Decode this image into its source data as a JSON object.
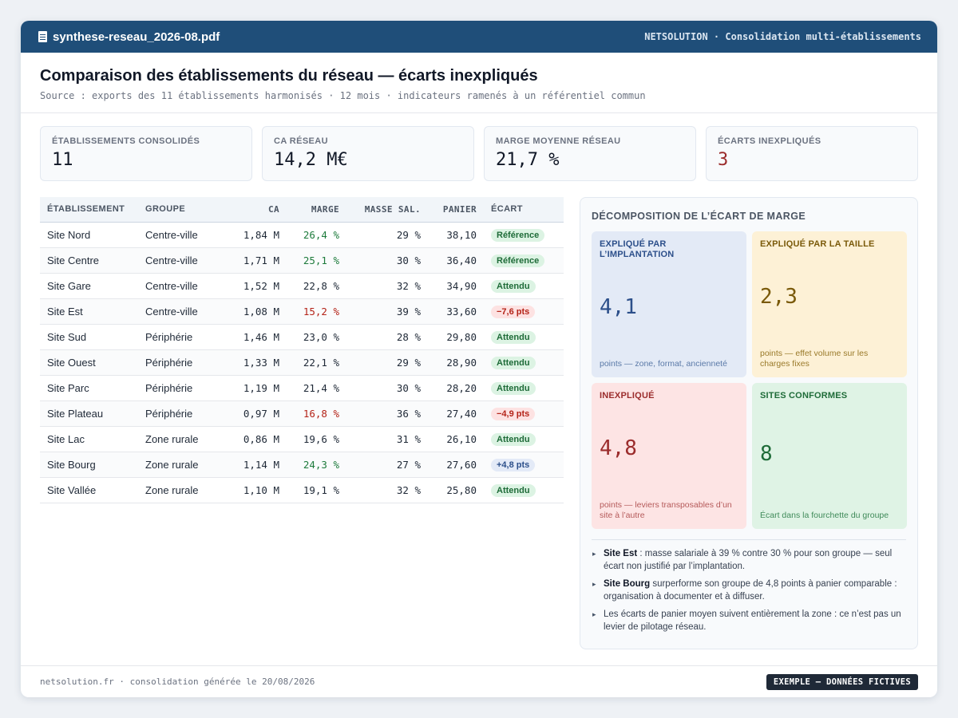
{
  "titlebar": {
    "filename": "synthese-reseau_2026-08.pdf",
    "brand": "NETSOLUTION · Consolidation multi-établissements"
  },
  "header": {
    "title": "Comparaison des établissements du réseau — écarts inexpliqués",
    "subtitle": "Source : exports des 11 établissements harmonisés · 12 mois · indicateurs ramenés à un référentiel commun"
  },
  "kpis": [
    {
      "label": "ÉTABLISSEMENTS CONSOLIDÉS",
      "value": "11"
    },
    {
      "label": "CA RÉSEAU",
      "value": "14,2 M€"
    },
    {
      "label": "MARGE MOYENNE RÉSEAU",
      "value": "21,7 %"
    },
    {
      "label": "ÉCARTS INEXPLIQUÉS",
      "value": "3"
    }
  ],
  "table": {
    "headers": [
      "ÉTABLISSEMENT",
      "GROUPE",
      "CA",
      "MARGE",
      "MASSE SAL.",
      "PANIER",
      "ÉCART"
    ],
    "rows": [
      {
        "site": "Site Nord",
        "groupe": "Centre-ville",
        "ca": "1,84 M",
        "marge": "26,4 %",
        "masse": "29 %",
        "panier": "38,10",
        "ecart": "Référence"
      },
      {
        "site": "Site Centre",
        "groupe": "Centre-ville",
        "ca": "1,71 M",
        "marge": "25,1 %",
        "masse": "30 %",
        "panier": "36,40",
        "ecart": "Référence"
      },
      {
        "site": "Site Gare",
        "groupe": "Centre-ville",
        "ca": "1,52 M",
        "marge": "22,8 %",
        "masse": "32 %",
        "panier": "34,90",
        "ecart": "Attendu"
      },
      {
        "site": "Site Est",
        "groupe": "Centre-ville",
        "ca": "1,08 M",
        "marge": "15,2 %",
        "masse": "39 %",
        "panier": "33,60",
        "ecart": "−7,6 pts"
      },
      {
        "site": "Site Sud",
        "groupe": "Périphérie",
        "ca": "1,46 M",
        "marge": "23,0 %",
        "masse": "28 %",
        "panier": "29,80",
        "ecart": "Attendu"
      },
      {
        "site": "Site Ouest",
        "groupe": "Périphérie",
        "ca": "1,33 M",
        "marge": "22,1 %",
        "masse": "29 %",
        "panier": "28,90",
        "ecart": "Attendu"
      },
      {
        "site": "Site Parc",
        "groupe": "Périphérie",
        "ca": "1,19 M",
        "marge": "21,4 %",
        "masse": "30 %",
        "panier": "28,20",
        "ecart": "Attendu"
      },
      {
        "site": "Site Plateau",
        "groupe": "Périphérie",
        "ca": "0,97 M",
        "marge": "16,8 %",
        "masse": "36 %",
        "panier": "27,40",
        "ecart": "−4,9 pts"
      },
      {
        "site": "Site Lac",
        "groupe": "Zone rurale",
        "ca": "0,86 M",
        "marge": "19,6 %",
        "masse": "31 %",
        "panier": "26,10",
        "ecart": "Attendu"
      },
      {
        "site": "Site Bourg",
        "groupe": "Zone rurale",
        "ca": "1,14 M",
        "marge": "24,3 %",
        "masse": "27 %",
        "panier": "27,60",
        "ecart": "+4,8 pts"
      },
      {
        "site": "Site Vallée",
        "groupe": "Zone rurale",
        "ca": "1,10 M",
        "marge": "19,1 %",
        "masse": "32 %",
        "panier": "25,80",
        "ecart": "Attendu"
      }
    ]
  },
  "panel": {
    "title": "DÉCOMPOSITION DE L’ÉCART DE MARGE",
    "cells": [
      {
        "label": "EXPLIQUÉ PAR L’IMPLANTATION",
        "value": "4,1",
        "note": "points — zone, format, ancienneté"
      },
      {
        "label": "EXPLIQUÉ PAR LA TAILLE",
        "value": "2,3",
        "note": "points — effet volume sur les charges fixes"
      },
      {
        "label": "INEXPLIQUÉ",
        "value": "4,8",
        "note": "points — leviers transposables d’un site à l’autre"
      },
      {
        "label": "SITES CONFORMES",
        "value": "8",
        "note": "Écart dans la fourchette du groupe"
      }
    ],
    "notes": [
      {
        "strong": "Site Est",
        "text": " : masse salariale à 39 % contre 30 % pour son groupe — seul écart non justifié par l’implantation."
      },
      {
        "strong": "Site Bourg",
        "text": " surperforme son groupe de 4,8 points à panier comparable : organisation à documenter et à diffuser."
      },
      {
        "strong": "",
        "text": "Les écarts de panier moyen suivent entièrement la zone : ce n’est pas un levier de pilotage réseau."
      }
    ]
  },
  "footer": {
    "text": "netsolution.fr · consolidation générée le 20/08/2026",
    "badge": "EXEMPLE — DONNÉES FICTIVES"
  },
  "colors": {
    "header_blue": "#1f4e79",
    "positive_green": "#1e7b3c",
    "negative_red": "#b42318",
    "panel_blue": "#e3eaf6",
    "panel_yellow": "#fdf1d6",
    "panel_red": "#fde4e4",
    "panel_green": "#dff3e5"
  },
  "icons": {
    "title_icon": "file-icon"
  }
}
